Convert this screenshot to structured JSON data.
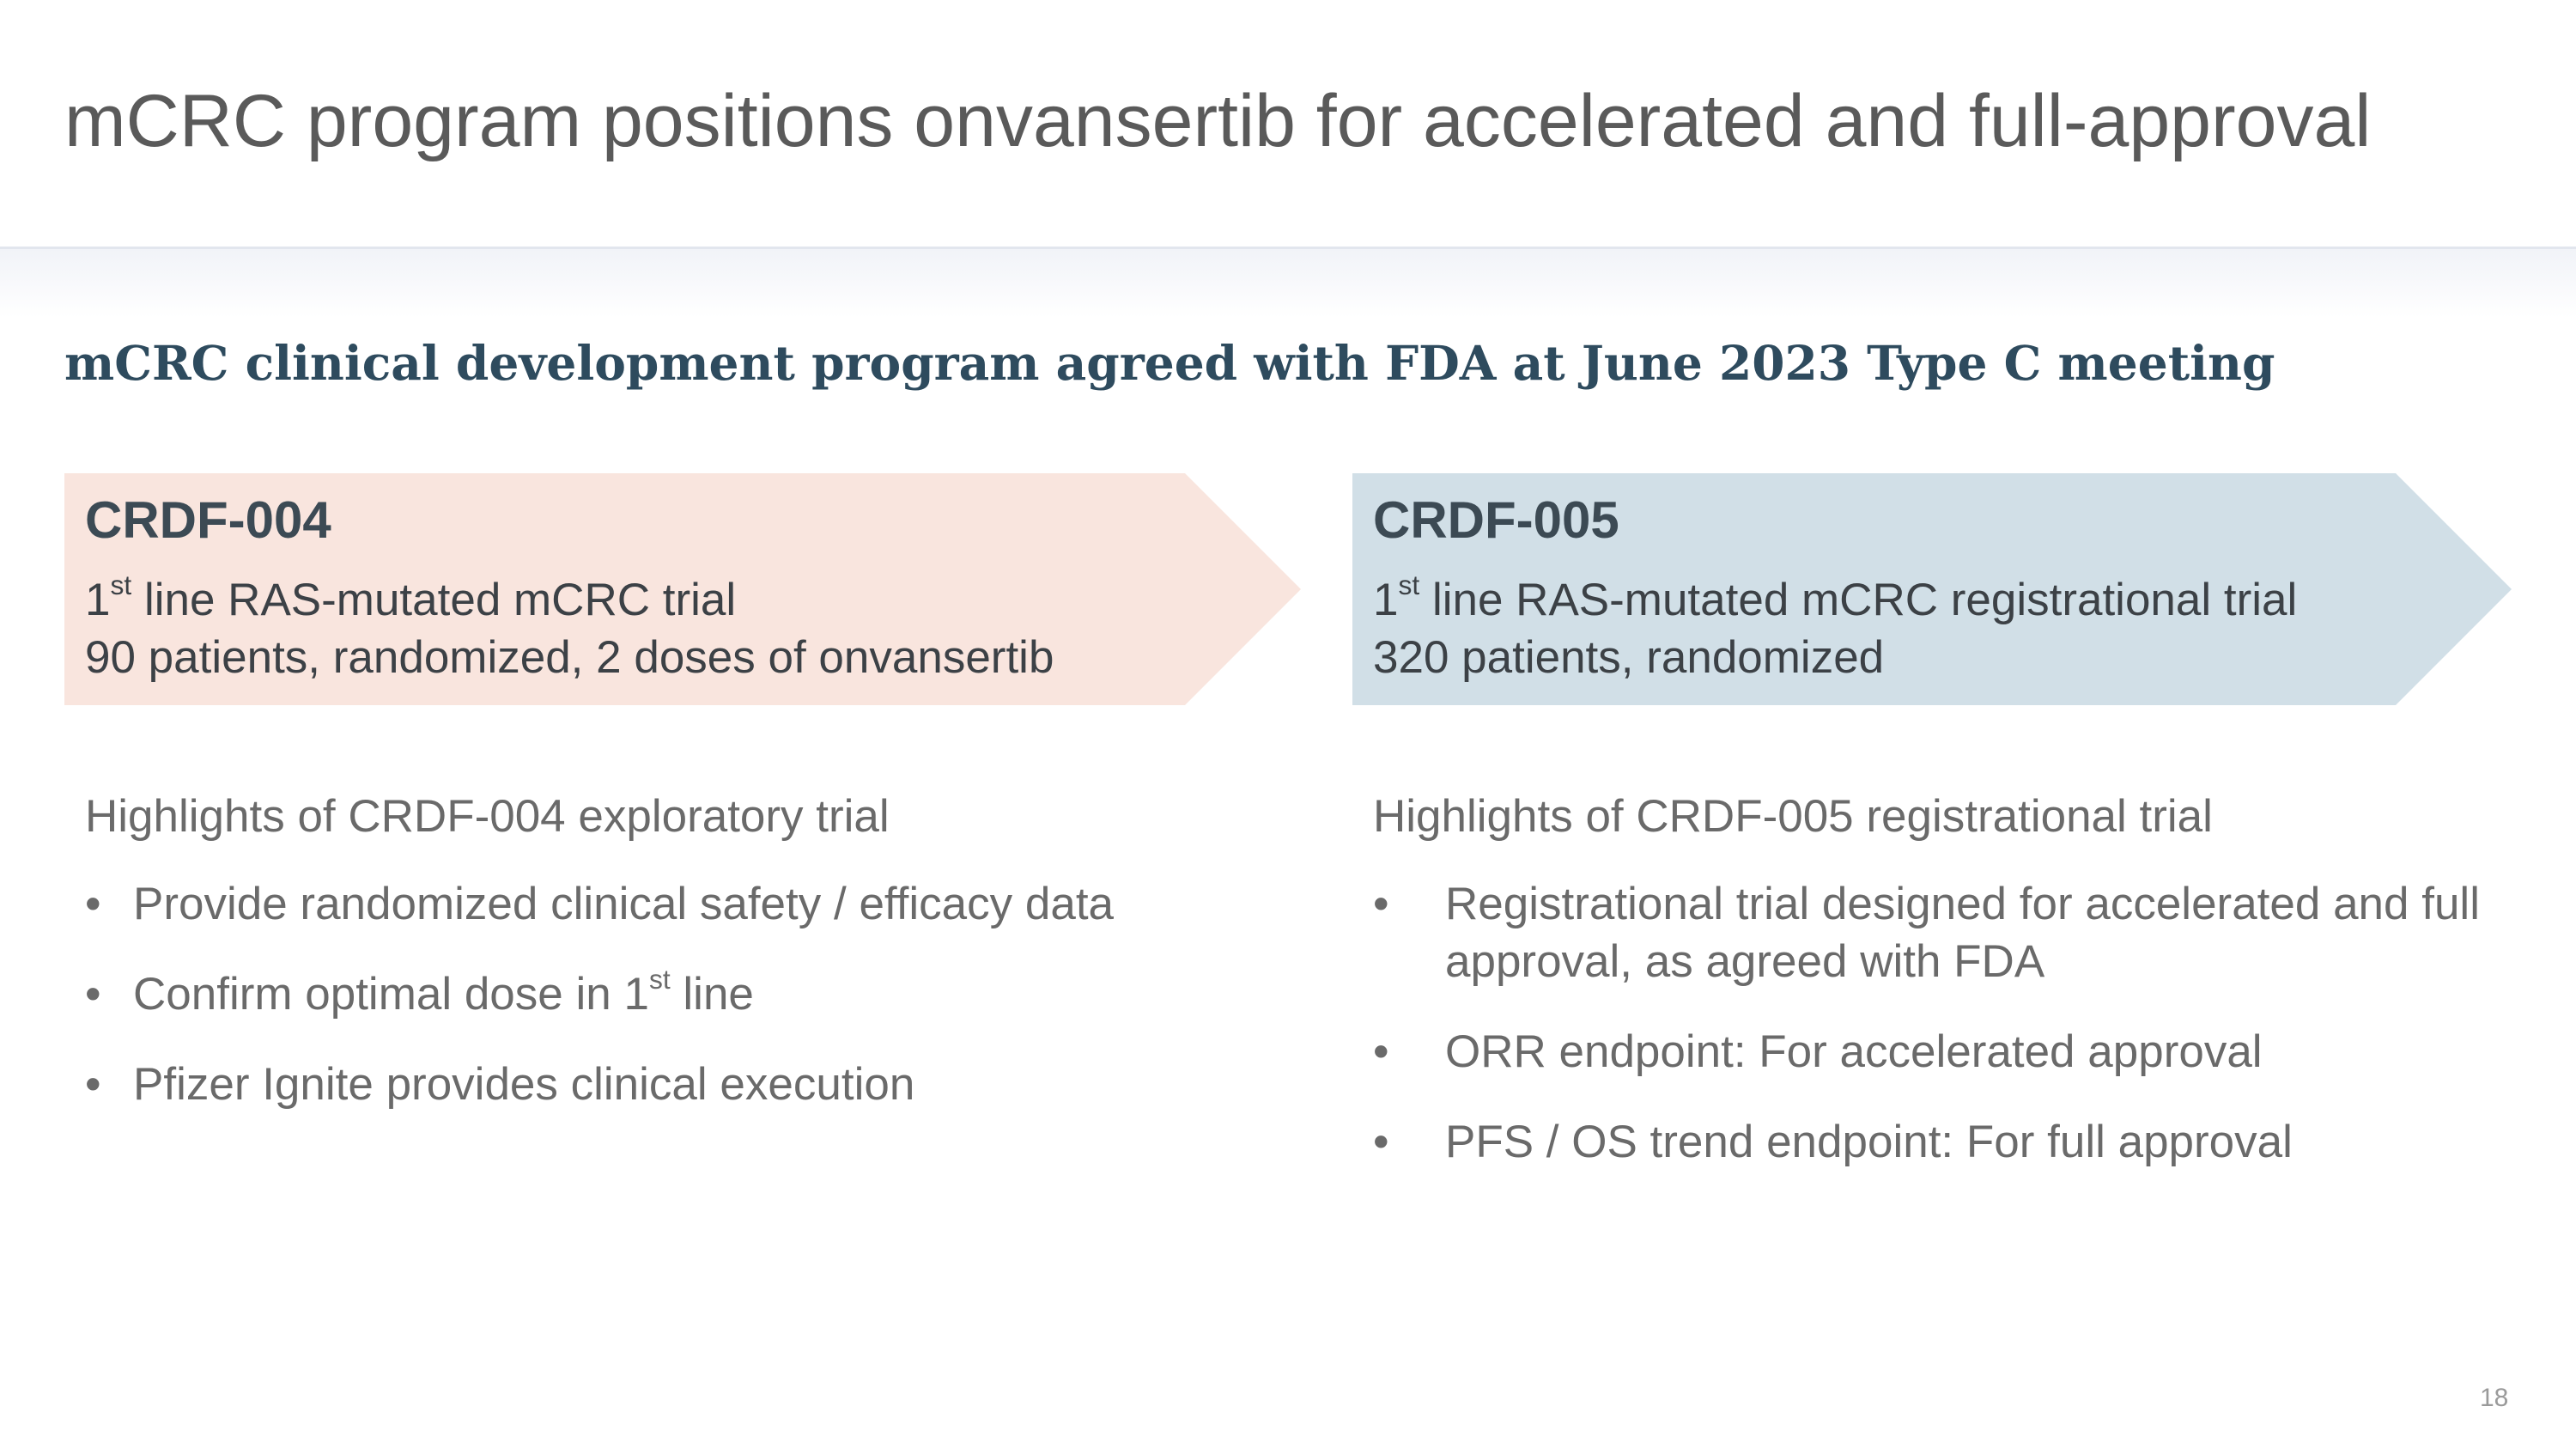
{
  "slide": {
    "title": "mCRC program positions onvansertib for accelerated and full-approval",
    "subtitle": "mCRC clinical development program agreed with FDA at June 2023 Type C meeting",
    "page_number": "18"
  },
  "trials": {
    "left": {
      "name": "CRDF-004",
      "line1_number": "1",
      "line1_sup": "st",
      "line1_text": " line RAS-mutated mCRC trial",
      "line2": "90 patients, randomized, 2 doses of onvansertib",
      "color": "#f9e5de"
    },
    "right": {
      "name": "CRDF-005",
      "line1_number": "1",
      "line1_sup": "st",
      "line1_text": " line RAS-mutated mCRC registrational trial",
      "line2": "320 patients, randomized",
      "color": "#d1dfe7"
    }
  },
  "highlights": {
    "left": {
      "heading": "Highlights of CRDF-004 exploratory trial",
      "bullet_symbol": "•",
      "bullets": [
        "Provide randomized clinical safety / efficacy data",
        {
          "before": "Confirm optimal dose in 1",
          "sup": "st",
          "after": " line"
        },
        "Pfizer Ignite provides clinical execution"
      ]
    },
    "right": {
      "heading": "Highlights of CRDF-005 registrational trial",
      "bullet_symbol": "•",
      "bullets": [
        "Registrational trial designed for accelerated and full approval, as agreed with FDA",
        "ORR endpoint: For accelerated approval",
        "PFS / OS trend endpoint: For full approval"
      ]
    }
  }
}
